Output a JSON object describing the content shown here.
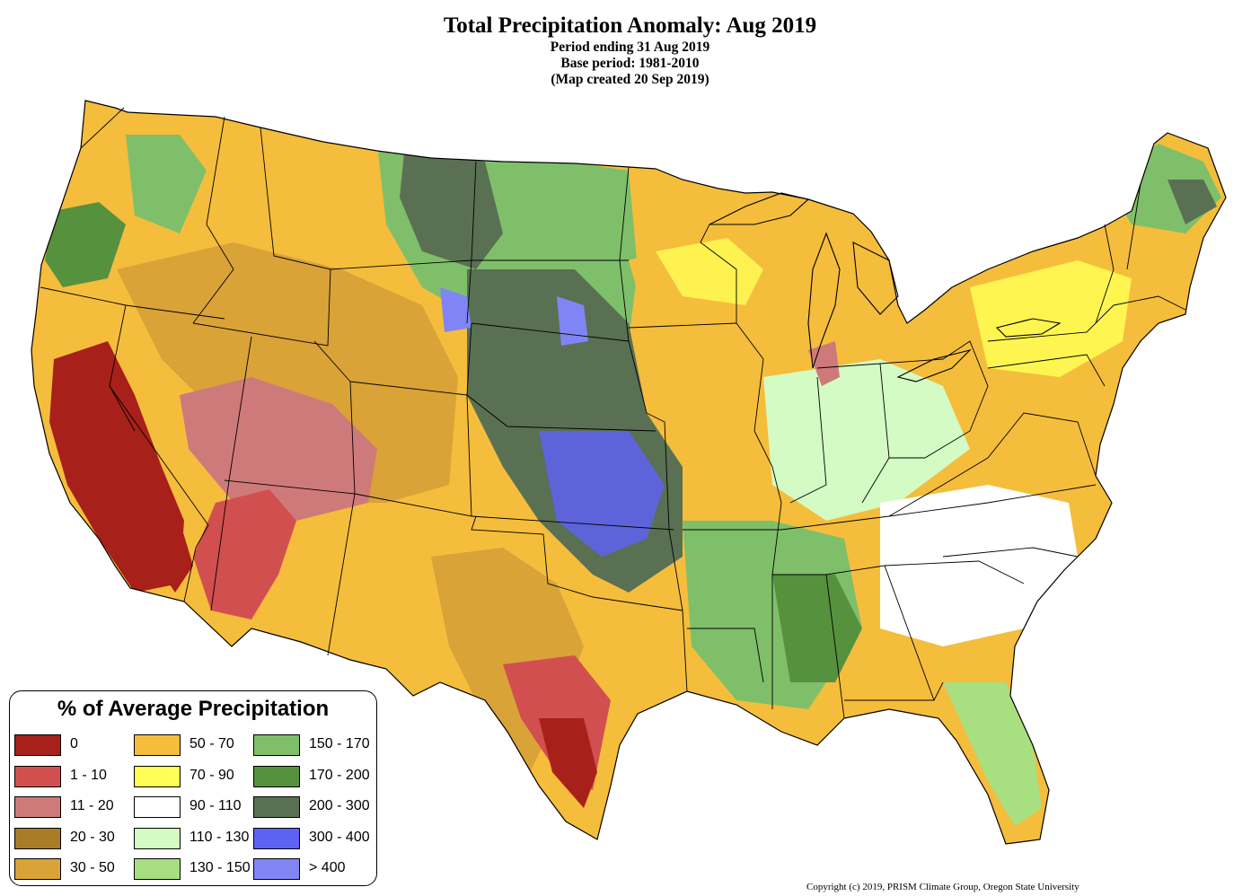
{
  "header": {
    "title": "Total Precipitation Anomaly: Aug 2019",
    "period": "Period ending 31 Aug 2019",
    "base_period": "Base period: 1981-2010",
    "created": "(Map created 20 Sep 2019)"
  },
  "legend": {
    "title": "% of Average Precipitation",
    "items": [
      {
        "label": "0",
        "color": "#a8201a"
      },
      {
        "label": "1 - 10",
        "color": "#d24f4f"
      },
      {
        "label": "11 - 20",
        "color": "#cf7a7a"
      },
      {
        "label": "20 - 30",
        "color": "#a87d26"
      },
      {
        "label": "30 - 50",
        "color": "#d9a338"
      },
      {
        "label": "50 - 70",
        "color": "#f5bd3c"
      },
      {
        "label": "70 - 90",
        "color": "#ffff55"
      },
      {
        "label": "90 - 110",
        "color": "#ffffff"
      },
      {
        "label": "110 - 130",
        "color": "#d4fbc3"
      },
      {
        "label": "130 - 150",
        "color": "#a8df80"
      },
      {
        "label": "150 - 170",
        "color": "#7fbf6a"
      },
      {
        "label": "170 - 200",
        "color": "#56913e"
      },
      {
        "label": "200 - 300",
        "color": "#5a7052"
      },
      {
        "label": "300 - 400",
        "color": "#5e62f2"
      },
      {
        "label": "> 400",
        "color": "#8085f5"
      }
    ]
  },
  "copyright": "Copyright (c) 2019, PRISM Climate Group, Oregon State University"
}
